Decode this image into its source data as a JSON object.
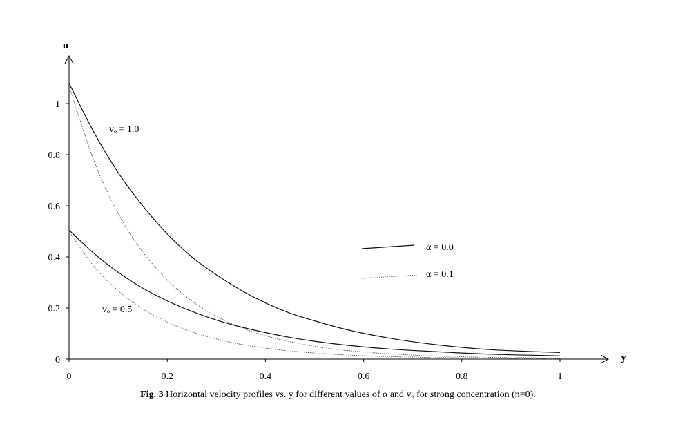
{
  "chart_data": {
    "type": "line",
    "xlabel": "y",
    "ylabel": "u",
    "xlim": [
      0,
      1
    ],
    "ylim": [
      0,
      1.1
    ],
    "x_ticks": [
      "0",
      "0.2",
      "0.4",
      "0.6",
      "0.8",
      "1"
    ],
    "y_ticks": [
      "0",
      "0.2",
      "0.4",
      "0.6",
      "0.8",
      "1"
    ],
    "grid": false,
    "legend": {
      "placement": "right",
      "entries": [
        {
          "label": "α = 0.0",
          "style": "solid"
        },
        {
          "label": "α = 0.1",
          "style": "dotted"
        }
      ]
    },
    "annotations": [
      {
        "text": "vₒ = 1.0",
        "group": "v0_1"
      },
      {
        "text": "vₒ = 0.5",
        "group": "v0_05"
      }
    ],
    "x": [
      0,
      0.05,
      0.1,
      0.15,
      0.2,
      0.25,
      0.3,
      0.35,
      0.4,
      0.45,
      0.5,
      0.55,
      0.6,
      0.65,
      0.7,
      0.75,
      0.8,
      0.85,
      0.9,
      0.95,
      1.0
    ],
    "series": [
      {
        "style": "solid",
        "group": "v0_1",
        "values": [
          1.08,
          0.89,
          0.73,
          0.6,
          0.49,
          0.4,
          0.33,
          0.27,
          0.22,
          0.18,
          0.15,
          0.123,
          0.101,
          0.083,
          0.068,
          0.056,
          0.046,
          0.038,
          0.033,
          0.029,
          0.026
        ]
      },
      {
        "style": "dotted",
        "group": "v0_1",
        "values": [
          1.07,
          0.78,
          0.57,
          0.42,
          0.31,
          0.228,
          0.168,
          0.124,
          0.092,
          0.068,
          0.05,
          0.037,
          0.028,
          0.021,
          0.016,
          0.012,
          0.009,
          0.007,
          0.006,
          0.005,
          0.004
        ]
      },
      {
        "style": "solid",
        "group": "v0_05",
        "values": [
          0.505,
          0.415,
          0.34,
          0.278,
          0.228,
          0.187,
          0.153,
          0.126,
          0.104,
          0.085,
          0.07,
          0.058,
          0.048,
          0.04,
          0.034,
          0.029,
          0.024,
          0.02,
          0.017,
          0.015,
          0.013
        ]
      },
      {
        "style": "dotted",
        "group": "v0_05",
        "values": [
          0.5,
          0.365,
          0.268,
          0.197,
          0.145,
          0.107,
          0.079,
          0.058,
          0.043,
          0.032,
          0.024,
          0.018,
          0.013,
          0.01,
          0.008,
          0.006,
          0.005,
          0.004,
          0.003,
          0.003,
          0.002
        ]
      }
    ]
  },
  "caption": {
    "prefix": "Fig. 3",
    "text": " Horizontal velocity profiles vs. y for different values of α and vₒ for strong concentration  (n=0)."
  }
}
